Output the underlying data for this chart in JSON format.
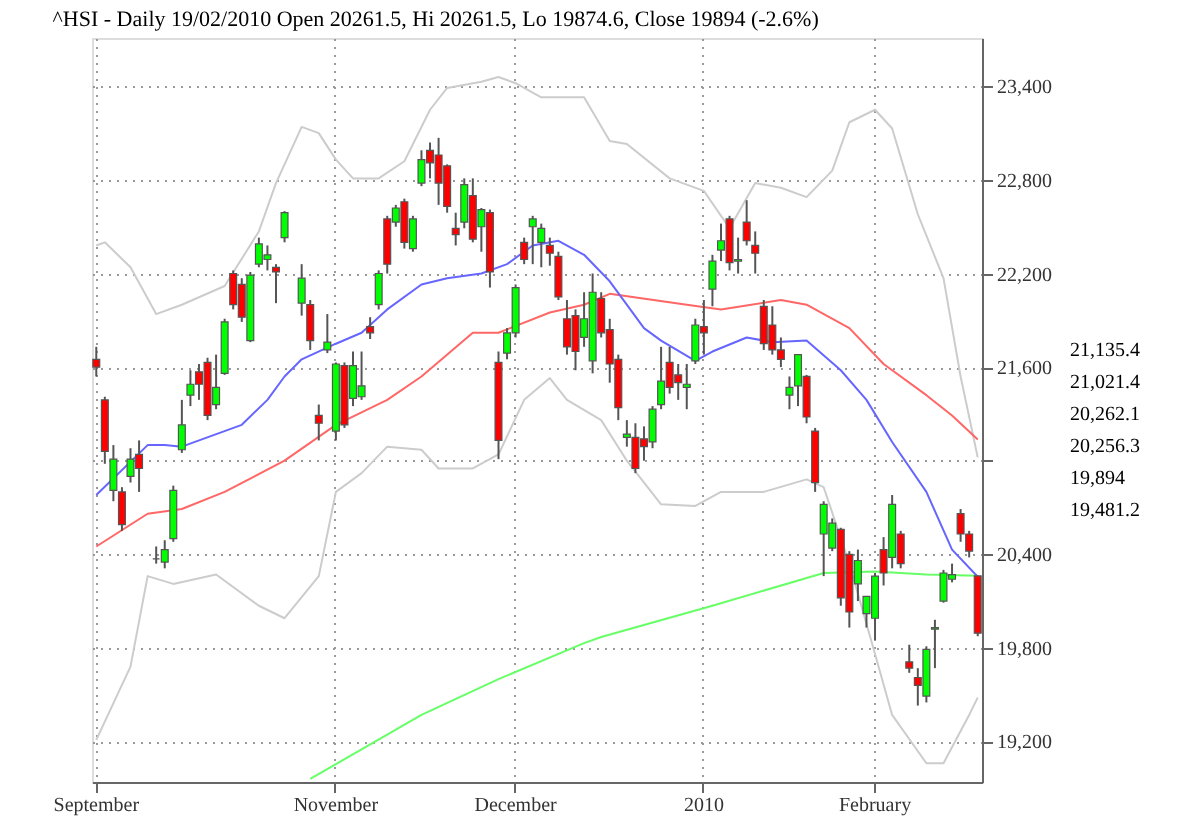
{
  "chart_data": {
    "type": "candlestick",
    "title": "^HSI - Daily 19/02/2010 Open 20261.5, Hi 20261.5, Lo 19874.6, Close 19894 (-2.6%)",
    "categories": [
      "September",
      null,
      null,
      null,
      null,
      null,
      null,
      null,
      null,
      null,
      null,
      null,
      null,
      null,
      null,
      null,
      null,
      null,
      null,
      null,
      null,
      null,
      null,
      null,
      null,
      null,
      null,
      null,
      "November",
      null,
      null,
      null,
      null,
      null,
      null,
      null,
      null,
      null,
      null,
      null,
      null,
      null,
      null,
      null,
      null,
      null,
      null,
      null,
      null,
      "December",
      null,
      null,
      null,
      null,
      null,
      null,
      null,
      null,
      null,
      null,
      null,
      null,
      null,
      null,
      null,
      null,
      null,
      null,
      null,
      null,
      null,
      "2010",
      null,
      null,
      null,
      null,
      null,
      null,
      null,
      null,
      null,
      null,
      null,
      null,
      null,
      null,
      null,
      null,
      null,
      null,
      null,
      "February",
      null,
      null,
      null,
      null,
      null,
      null,
      null,
      null,
      null,
      null,
      null,
      null
    ],
    "ohlc": [
      [
        21650,
        21730,
        21540,
        21600
      ],
      [
        21390,
        21410,
        20980,
        21060
      ],
      [
        20810,
        21100,
        20740,
        21010
      ],
      [
        20800,
        20830,
        20550,
        20590
      ],
      [
        20900,
        21080,
        20860,
        21010
      ],
      [
        21040,
        21130,
        20800,
        20950
      ],
      null,
      [
        20370,
        20450,
        20340,
        20370
      ],
      [
        20350,
        20490,
        20310,
        20430
      ],
      [
        20500,
        20840,
        20480,
        20810
      ],
      [
        21070,
        21390,
        21050,
        21230
      ],
      [
        21420,
        21580,
        21350,
        21490
      ],
      [
        21570,
        21620,
        21390,
        21490
      ],
      [
        21630,
        21660,
        21260,
        21290
      ],
      [
        21360,
        21680,
        21330,
        21470
      ],
      [
        21560,
        21910,
        21550,
        21890
      ],
      [
        22200,
        22220,
        21970,
        22000
      ],
      [
        22130,
        22170,
        21890,
        21920
      ],
      [
        21770,
        22210,
        21760,
        22190
      ],
      [
        22260,
        22430,
        22240,
        22390
      ],
      [
        22290,
        22380,
        22220,
        22320
      ],
      [
        22240,
        22260,
        22010,
        22210
      ],
      [
        22430,
        22600,
        22400,
        22590
      ],
      null,
      [
        22010,
        22260,
        21930,
        22170
      ],
      [
        22000,
        22030,
        21710,
        21770
      ],
      [
        21290,
        21360,
        21130,
        21240
      ],
      [
        21710,
        21940,
        21690,
        21760
      ],
      [
        21190,
        21630,
        21130,
        21620
      ],
      [
        21610,
        21630,
        21210,
        21230
      ],
      [
        21400,
        21700,
        21350,
        21610
      ],
      [
        21410,
        21700,
        21390,
        21480
      ],
      [
        21860,
        21920,
        21780,
        21820
      ],
      [
        22000,
        22220,
        21970,
        22200
      ],
      [
        22550,
        22570,
        22200,
        22260
      ],
      [
        22530,
        22640,
        22500,
        22620
      ],
      [
        22660,
        22680,
        22360,
        22400
      ],
      [
        22360,
        22570,
        22340,
        22550
      ],
      [
        22780,
        22990,
        22760,
        22930
      ],
      [
        22990,
        23040,
        22810,
        22910
      ],
      [
        22960,
        23070,
        22640,
        22780
      ],
      [
        22890,
        22900,
        22590,
        22630
      ],
      [
        22490,
        22590,
        22380,
        22450
      ],
      [
        22530,
        22810,
        22490,
        22770
      ],
      [
        22700,
        22810,
        22400,
        22420
      ],
      [
        22500,
        22620,
        22340,
        22610
      ],
      [
        22590,
        22610,
        22110,
        22210
      ],
      [
        21630,
        21700,
        21010,
        21130
      ],
      [
        21690,
        21850,
        21650,
        21820
      ],
      [
        21820,
        22130,
        21790,
        22110
      ],
      [
        22400,
        22430,
        22260,
        22290
      ],
      [
        22500,
        22570,
        22260,
        22550
      ],
      [
        22400,
        22520,
        22240,
        22490
      ],
      [
        22380,
        22430,
        22250,
        22330
      ],
      [
        22310,
        22340,
        22030,
        22050
      ],
      [
        21910,
        22030,
        21680,
        21730
      ],
      [
        21930,
        21970,
        21580,
        21700
      ],
      [
        21790,
        22080,
        21730,
        21910
      ],
      [
        21640,
        22200,
        21560,
        22080
      ],
      [
        22040,
        22080,
        21790,
        21820
      ],
      [
        21840,
        21910,
        21500,
        21620
      ],
      [
        21650,
        21680,
        21260,
        21340
      ],
      [
        21150,
        21260,
        21090,
        21170
      ],
      [
        21150,
        21240,
        20920,
        20950
      ],
      [
        21140,
        21220,
        21000,
        21090
      ],
      [
        21120,
        21350,
        21080,
        21330
      ],
      [
        21360,
        21730,
        21330,
        21510
      ],
      [
        21630,
        21730,
        21430,
        21470
      ],
      [
        21550,
        21620,
        21390,
        21500
      ],
      [
        21470,
        21620,
        21330,
        21490
      ],
      [
        21640,
        21910,
        21620,
        21870
      ],
      [
        21860,
        22030,
        21680,
        21820
      ],
      [
        22100,
        22320,
        21990,
        22280
      ],
      [
        22350,
        22520,
        22280,
        22410
      ],
      [
        22550,
        22570,
        22220,
        22270
      ],
      [
        22280,
        22430,
        22200,
        22290
      ],
      [
        22530,
        22670,
        22380,
        22410
      ],
      [
        22380,
        22470,
        22200,
        22330
      ],
      [
        21990,
        22030,
        21710,
        21750
      ],
      [
        21870,
        21990,
        21680,
        21710
      ],
      [
        21710,
        21790,
        21600,
        21650
      ],
      [
        21420,
        21540,
        21330,
        21470
      ],
      [
        21480,
        21680,
        21350,
        21680
      ],
      [
        21540,
        21550,
        21240,
        21280
      ],
      [
        21190,
        21210,
        20800,
        20860
      ],
      [
        20530,
        20740,
        20260,
        20720
      ],
      [
        20440,
        20630,
        20420,
        20600
      ],
      [
        20560,
        20570,
        20070,
        20120
      ],
      [
        20400,
        20420,
        19930,
        20030
      ],
      [
        20210,
        20430,
        20100,
        20360
      ],
      [
        20020,
        20130,
        19930,
        20130
      ],
      [
        19990,
        20280,
        19850,
        20260
      ],
      [
        20430,
        20510,
        20200,
        20280
      ],
      [
        20380,
        20780,
        20310,
        20720
      ],
      [
        20530,
        20550,
        20310,
        20340
      ],
      [
        19710,
        19820,
        19640,
        19670
      ],
      [
        19610,
        19670,
        19430,
        19560
      ],
      [
        19490,
        19810,
        19450,
        19790
      ],
      [
        19920,
        19980,
        19670,
        19930
      ],
      [
        20100,
        20300,
        20090,
        20280
      ],
      [
        20240,
        20340,
        20220,
        20270
      ],
      [
        20660,
        20690,
        20480,
        20530
      ],
      [
        20530,
        20550,
        20380,
        20420
      ],
      [
        20261.5,
        20261.5,
        19874.6,
        19894
      ]
    ],
    "colors": [
      "#ff0000",
      "#ff0000",
      "#00ff00",
      "#ff0000",
      "#00ff00",
      "#ff0000",
      null,
      "#555555",
      "#00ff00",
      "#00ff00",
      "#00ff00",
      "#00ff00",
      "#ff0000",
      "#ff0000",
      "#00ff00",
      "#00ff00",
      "#ff0000",
      "#ff0000",
      "#00ff00",
      "#00ff00",
      "#00ff00",
      "#ff0000",
      "#00ff00",
      null,
      "#00ff00",
      "#ff0000",
      "#ff0000",
      "#00ff00",
      "#00ff00",
      "#ff0000",
      "#00ff00",
      "#00ff00",
      "#ff0000",
      "#00ff00",
      "#ff0000",
      "#00ff00",
      "#ff0000",
      "#00ff00",
      "#00ff00",
      "#ff0000",
      "#ff0000",
      "#ff0000",
      "#ff0000",
      "#00ff00",
      "#ff0000",
      "#00ff00",
      "#ff0000",
      "#ff0000",
      "#00ff00",
      "#00ff00",
      "#ff0000",
      "#00ff00",
      "#00ff00",
      "#ff0000",
      "#ff0000",
      "#ff0000",
      "#ff0000",
      "#00ff00",
      "#00ff00",
      "#ff0000",
      "#ff0000",
      "#ff0000",
      "#00ff00",
      "#ff0000",
      "#ff0000",
      "#00ff00",
      "#00ff00",
      "#ff0000",
      "#ff0000",
      "#00ff00",
      "#00ff00",
      "#ff0000",
      "#00ff00",
      "#00ff00",
      "#ff0000",
      "#00ff00",
      "#ff0000",
      "#ff0000",
      "#ff0000",
      "#ff0000",
      "#ff0000",
      "#00ff00",
      "#00ff00",
      "#ff0000",
      "#ff0000",
      "#00ff00",
      "#00ff00",
      "#ff0000",
      "#ff0000",
      "#00ff00",
      "#00ff00",
      "#00ff00",
      "#ff0000",
      "#00ff00",
      "#ff0000",
      "#ff0000",
      "#ff0000",
      "#00ff00",
      "#00ff00",
      "#00ff00",
      "#00ff00",
      "#ff0000",
      "#ff0000",
      "#ff0000"
    ],
    "series": [
      {
        "type": "line",
        "color": "#cccccc",
        "values": [
          22380,
          22400,
          null,
          null,
          22240,
          null,
          null,
          21940,
          null,
          null,
          22000,
          null,
          null,
          null,
          null,
          22120,
          null,
          null,
          null,
          22470,
          null,
          22780,
          null,
          null,
          23140,
          null,
          23100,
          null,
          22930,
          null,
          22810,
          null,
          null,
          22810,
          null,
          null,
          22920,
          null,
          null,
          23250,
          null,
          23390,
          null,
          null,
          null,
          23430,
          null,
          23460,
          null,
          23420,
          null,
          null,
          23330,
          null,
          null,
          null,
          null,
          23330,
          null,
          null,
          23050,
          null,
          23030,
          null,
          null,
          null,
          null,
          22810,
          null,
          null,
          null,
          22730,
          null,
          null,
          22490,
          null,
          null,
          22780,
          null,
          null,
          22750,
          null,
          null,
          22690,
          null,
          null,
          22860,
          null,
          23170,
          null,
          null,
          23250,
          null,
          23130,
          null,
          null,
          22580,
          null,
          null,
          22170,
          null,
          21540,
          null,
          21021.4
        ]
      },
      {
        "type": "line",
        "color": "#cccccc",
        "values": [
          19210,
          null,
          null,
          null,
          19680,
          null,
          20260,
          null,
          null,
          20210,
          null,
          null,
          null,
          null,
          20270,
          null,
          null,
          null,
          null,
          20070,
          null,
          null,
          19990,
          null,
          null,
          null,
          20260,
          null,
          20800,
          null,
          null,
          20920,
          null,
          null,
          21090,
          null,
          null,
          null,
          21070,
          null,
          20950,
          null,
          null,
          null,
          20950,
          null,
          null,
          21040,
          null,
          null,
          21390,
          null,
          null,
          21530,
          null,
          21390,
          null,
          null,
          null,
          21260,
          null,
          null,
          21000,
          null,
          null,
          null,
          20720,
          null,
          null,
          null,
          20710,
          null,
          null,
          20800,
          null,
          null,
          null,
          null,
          20800,
          null,
          null,
          null,
          null,
          20880,
          null,
          20830,
          null,
          null,
          20340,
          null,
          null,
          19760,
          null,
          19370,
          null,
          null,
          null,
          19060,
          null,
          19060,
          null,
          null,
          19370,
          19481.2
        ]
      },
      {
        "type": "line",
        "color": "#66ff66",
        "values": [
          null,
          null,
          null,
          null,
          null,
          null,
          null,
          null,
          null,
          null,
          null,
          null,
          null,
          null,
          null,
          null,
          null,
          null,
          null,
          null,
          null,
          null,
          null,
          null,
          null,
          18960,
          null,
          null,
          null,
          null,
          null,
          null,
          null,
          null,
          null,
          null,
          null,
          null,
          19370,
          null,
          null,
          null,
          null,
          null,
          null,
          null,
          null,
          19600,
          null,
          null,
          null,
          null,
          null,
          null,
          null,
          null,
          null,
          19830,
          null,
          19870,
          null,
          null,
          null,
          null,
          null,
          null,
          null,
          null,
          null,
          null,
          null,
          null,
          20070,
          null,
          null,
          null,
          null,
          null,
          null,
          null,
          null,
          null,
          null,
          null,
          null,
          20280,
          null,
          null,
          null,
          null,
          null,
          20290,
          null,
          null,
          null,
          null,
          null,
          20270,
          null,
          null,
          null,
          null,
          null,
          20262.1
        ]
      },
      {
        "type": "line",
        "color": "#ff6666",
        "values": [
          20450,
          null,
          null,
          null,
          null,
          null,
          20660,
          null,
          null,
          null,
          20690,
          null,
          null,
          null,
          null,
          20800,
          null,
          null,
          null,
          null,
          null,
          null,
          21000,
          null,
          null,
          null,
          null,
          null,
          21230,
          null,
          null,
          null,
          null,
          null,
          21390,
          null,
          null,
          null,
          21540,
          null,
          null,
          null,
          null,
          null,
          21820,
          null,
          null,
          21820,
          null,
          null,
          null,
          null,
          null,
          21950,
          null,
          null,
          null,
          22000,
          null,
          null,
          22070,
          null,
          null,
          null,
          null,
          null,
          null,
          null,
          null,
          22000,
          null,
          null,
          null,
          21970,
          null,
          null,
          null,
          null,
          null,
          null,
          22030,
          null,
          null,
          22000,
          null,
          null,
          null,
          null,
          21850,
          null,
          null,
          null,
          21620,
          null,
          null,
          null,
          null,
          21420,
          null,
          null,
          21290,
          null,
          null,
          21135.4
        ]
      },
      {
        "type": "line",
        "color": "#6666ff",
        "values": [
          20780,
          null,
          null,
          null,
          null,
          null,
          21100,
          null,
          21100,
          null,
          21090,
          null,
          null,
          null,
          null,
          null,
          null,
          21230,
          null,
          null,
          21390,
          null,
          21540,
          null,
          21650,
          null,
          null,
          null,
          21750,
          null,
          null,
          21820,
          null,
          null,
          21970,
          null,
          null,
          null,
          22130,
          null,
          null,
          22170,
          null,
          null,
          null,
          22200,
          null,
          null,
          22260,
          null,
          null,
          22380,
          null,
          null,
          22410,
          null,
          null,
          22320,
          null,
          null,
          22150,
          null,
          null,
          null,
          21850,
          null,
          21770,
          null,
          null,
          null,
          21640,
          null,
          21700,
          null,
          null,
          null,
          21790,
          null,
          null,
          21760,
          null,
          null,
          null,
          21770,
          null,
          null,
          null,
          21580,
          null,
          null,
          21390,
          null,
          null,
          21120,
          null,
          null,
          null,
          20800,
          null,
          null,
          20430,
          null,
          null,
          20256.3
        ]
      }
    ],
    "ylim": [
      18940,
      23710
    ],
    "yticks": [
      {
        "value": 19200,
        "label": "19,200"
      },
      {
        "value": 19800,
        "label": "19,800"
      },
      {
        "value": 20400,
        "label": "20,400"
      },
      {
        "value": 21000,
        "label": null
      },
      {
        "value": 21600,
        "label": "21,600"
      },
      {
        "value": 22200,
        "label": "22,200"
      },
      {
        "value": 22800,
        "label": "22,800"
      },
      {
        "value": 23400,
        "label": "23,400"
      }
    ],
    "grid": true,
    "annotations": [
      "21,135.4",
      "21,021.4",
      "20,262.1",
      "20,256.3",
      "19,894",
      "19,481.2"
    ]
  }
}
